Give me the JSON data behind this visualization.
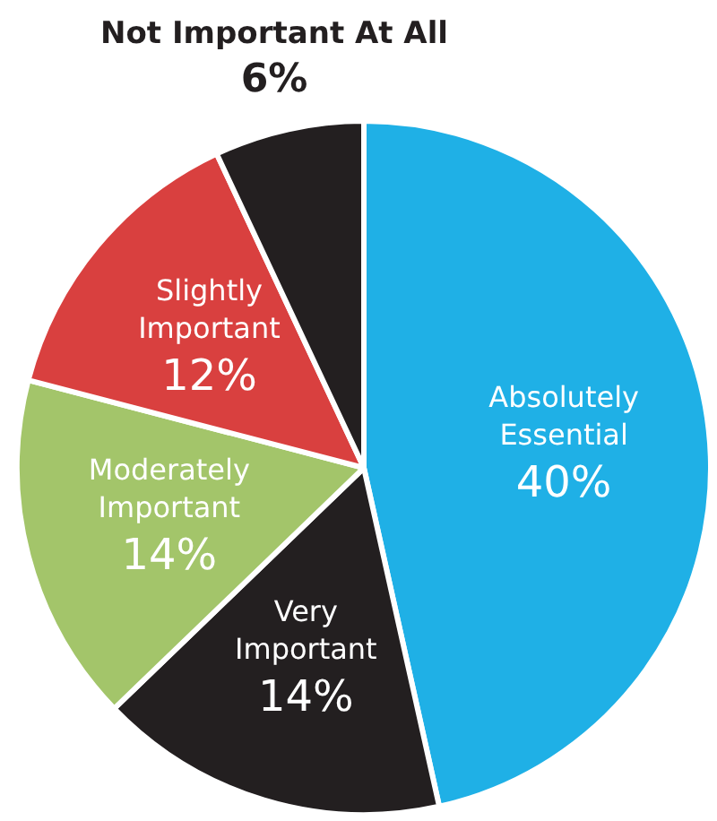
{
  "chart_data": {
    "type": "pie",
    "categories": [
      "Absolutely Essential",
      "Very Important",
      "Moderately Important",
      "Slightly Important",
      "Not Important At All"
    ],
    "values": [
      40,
      14,
      14,
      12,
      6
    ],
    "value_labels": [
      "40%",
      "14%",
      "14%",
      "12%",
      "6%"
    ],
    "colors": [
      "#1fb0e6",
      "#231f20",
      "#a3c56a",
      "#d9403f",
      "#231f20"
    ]
  }
}
